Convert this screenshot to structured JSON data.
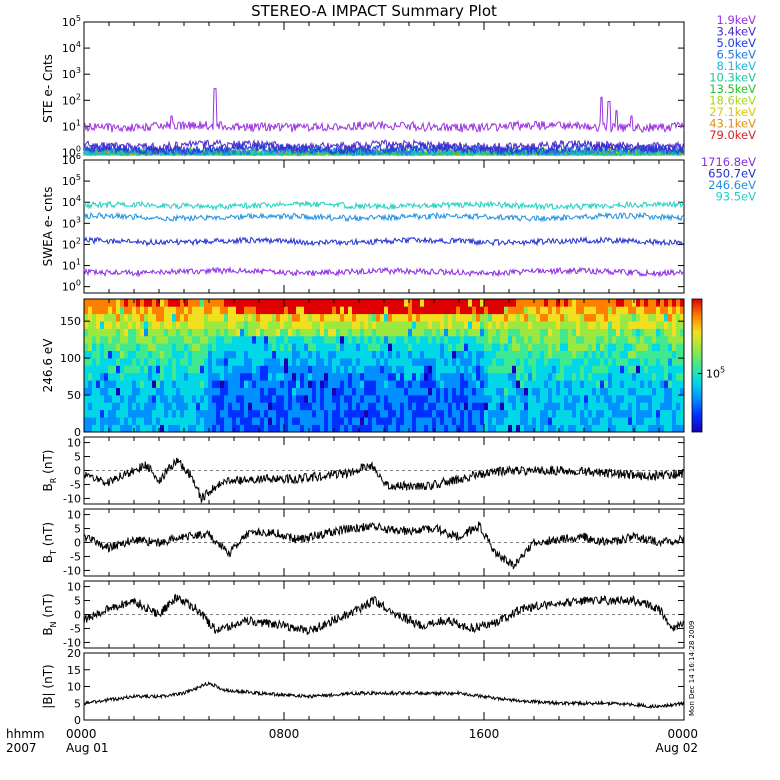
{
  "figure": {
    "title": "STEREO-A IMPACT Summary Plot",
    "footer_left": [
      "hhmm",
      "2007"
    ],
    "side_stamp": "Mon Dec 14 16:14:28 2009"
  },
  "chart_data": [
    {
      "id": "ste",
      "type": "line",
      "ylabel": "STE e- Cnts",
      "yscale": "log",
      "ylim": [
        0.8,
        100000
      ],
      "yticks": [
        "10^0",
        "10^1",
        "10^2",
        "10^3",
        "10^4",
        "10^5"
      ],
      "legend": "right",
      "series": [
        {
          "name": "1.9keV",
          "color": "#9b30e0",
          "baseline": 10,
          "spikes": [
            [
              3.5,
              25
            ],
            [
              5.25,
              280
            ],
            [
              20.7,
              130
            ],
            [
              21.0,
              90
            ],
            [
              21.3,
              40
            ],
            [
              21.9,
              25
            ]
          ]
        },
        {
          "name": "3.4keV",
          "color": "#4b28c8",
          "baseline": 1.8
        },
        {
          "name": "5.0keV",
          "color": "#1f3bdc",
          "baseline": 1.4
        },
        {
          "name": "6.5keV",
          "color": "#1e78e6",
          "baseline": 1.2
        },
        {
          "name": "8.1keV",
          "color": "#19b8d8",
          "baseline": 1.0
        },
        {
          "name": "10.3keV",
          "color": "#16c8a0",
          "baseline": 0.9
        },
        {
          "name": "13.5keV",
          "color": "#22c22a",
          "baseline": 0.9
        },
        {
          "name": "18.6keV",
          "color": "#a6d41e",
          "baseline": 0.9
        },
        {
          "name": "27.1keV",
          "color": "#d8c80e",
          "baseline": 0.9
        },
        {
          "name": "43.1keV",
          "color": "#e08e10",
          "baseline": 0.9
        },
        {
          "name": "79.0keV",
          "color": "#d42222",
          "baseline": 0.9
        }
      ]
    },
    {
      "id": "swea",
      "type": "line",
      "ylabel": "SWEA e- cnts",
      "yscale": "log",
      "ylim": [
        0.5,
        1000000
      ],
      "yticks": [
        "10^0",
        "10^1",
        "10^2",
        "10^3",
        "10^4",
        "10^5",
        "10^6"
      ],
      "legend": "right",
      "series": [
        {
          "name": "1716.8eV",
          "color": "#8a2be2",
          "baseline": 5
        },
        {
          "name": "650.7eV",
          "color": "#1f2fd0",
          "baseline": 140
        },
        {
          "name": "246.6eV",
          "color": "#1e90e0",
          "baseline": 2000
        },
        {
          "name": "93.5eV",
          "color": "#1fd0c0",
          "baseline": 7000
        }
      ]
    },
    {
      "id": "pad",
      "type": "heatmap",
      "ylabel": "246.6 eV",
      "ylim": [
        0,
        180
      ],
      "yticks": [
        0,
        50,
        100,
        150
      ],
      "colorbar_label": "10^5",
      "colorbar_colors": [
        "#1800b8",
        "#0030ff",
        "#0090ff",
        "#00d8e8",
        "#40e890",
        "#9ae840",
        "#f0e020",
        "#ff8000",
        "#e00000"
      ]
    },
    {
      "id": "br",
      "type": "line",
      "ylabel": [
        "B",
        "R",
        " (nT)"
      ],
      "ylim": [
        -12,
        12
      ],
      "yticks": [
        -10,
        -5,
        0,
        5,
        10
      ],
      "series": [
        {
          "color": "#000000",
          "nodes": [
            [
              0,
              -2
            ],
            [
              1,
              -4
            ],
            [
              2,
              0
            ],
            [
              2.5,
              2
            ],
            [
              3,
              -4
            ],
            [
              3.7,
              4
            ],
            [
              4.3,
              -2
            ],
            [
              4.7,
              -10
            ],
            [
              5.5,
              -4
            ],
            [
              7,
              -3
            ],
            [
              8.5,
              -3
            ],
            [
              10.5,
              -1
            ],
            [
              11.5,
              2
            ],
            [
              12,
              -5
            ],
            [
              13.5,
              -6
            ],
            [
              15,
              -3
            ],
            [
              16,
              -1
            ],
            [
              17,
              0
            ],
            [
              18,
              0
            ],
            [
              19.5,
              0
            ],
            [
              21,
              -1
            ],
            [
              22.5,
              -2
            ],
            [
              24,
              -1
            ]
          ]
        }
      ]
    },
    {
      "id": "bt",
      "type": "line",
      "ylabel": [
        "B",
        "T",
        " (nT)"
      ],
      "ylim": [
        -12,
        12
      ],
      "yticks": [
        -10,
        -5,
        0,
        5,
        10
      ],
      "series": [
        {
          "color": "#000000",
          "nodes": [
            [
              0,
              2
            ],
            [
              1,
              -2
            ],
            [
              2,
              1
            ],
            [
              3,
              0
            ],
            [
              4,
              2
            ],
            [
              5,
              3
            ],
            [
              5.8,
              -4
            ],
            [
              6.5,
              3
            ],
            [
              7.5,
              4
            ],
            [
              8.5,
              1
            ],
            [
              10,
              4
            ],
            [
              11.5,
              6
            ],
            [
              12.5,
              4
            ],
            [
              14,
              5
            ],
            [
              15,
              2
            ],
            [
              15.8,
              6
            ],
            [
              16.5,
              -4
            ],
            [
              17.2,
              -8
            ],
            [
              18,
              0
            ],
            [
              19,
              1
            ],
            [
              20,
              2
            ],
            [
              21,
              0
            ],
            [
              22,
              2
            ],
            [
              23,
              0
            ],
            [
              24,
              1
            ]
          ]
        }
      ]
    },
    {
      "id": "bn",
      "type": "line",
      "ylabel": [
        "B",
        "N",
        " (nT)"
      ],
      "ylim": [
        -12,
        12
      ],
      "yticks": [
        -10,
        -5,
        0,
        5,
        10
      ],
      "series": [
        {
          "color": "#000000",
          "nodes": [
            [
              0,
              -2
            ],
            [
              1,
              2
            ],
            [
              2,
              5
            ],
            [
              3,
              0
            ],
            [
              3.7,
              6
            ],
            [
              4.5,
              2
            ],
            [
              5.3,
              -6
            ],
            [
              6.5,
              -2
            ],
            [
              8,
              -4
            ],
            [
              9,
              -6
            ],
            [
              10,
              -2
            ],
            [
              11,
              2
            ],
            [
              11.6,
              5
            ],
            [
              12.5,
              0
            ],
            [
              13.5,
              -4
            ],
            [
              14.5,
              -2
            ],
            [
              15.5,
              -5
            ],
            [
              16.5,
              -3
            ],
            [
              17.5,
              2
            ],
            [
              19,
              4
            ],
            [
              20.5,
              5
            ],
            [
              22,
              5
            ],
            [
              23,
              2
            ],
            [
              23.5,
              -5
            ],
            [
              24,
              -3
            ]
          ]
        }
      ]
    },
    {
      "id": "bmag",
      "type": "line",
      "ylabel": "|B| (nT)",
      "ylim": [
        0,
        20
      ],
      "yticks": [
        0,
        5,
        10,
        15,
        20
      ],
      "series": [
        {
          "color": "#000000",
          "nodes": [
            [
              0,
              5
            ],
            [
              2,
              7
            ],
            [
              3,
              7
            ],
            [
              4,
              8
            ],
            [
              5,
              11
            ],
            [
              5.6,
              9
            ],
            [
              7,
              8
            ],
            [
              9,
              7
            ],
            [
              11,
              8
            ],
            [
              13,
              8
            ],
            [
              15,
              8
            ],
            [
              16,
              7
            ],
            [
              17,
              6
            ],
            [
              19,
              5
            ],
            [
              21,
              5
            ],
            [
              23,
              4
            ],
            [
              24,
              5
            ]
          ]
        }
      ]
    }
  ],
  "x_axis": {
    "range_hours": [
      0,
      24
    ],
    "ticks": [
      {
        "hour": 0,
        "label": "0000",
        "sub": "Aug 01"
      },
      {
        "hour": 8,
        "label": "0800",
        "sub": ""
      },
      {
        "hour": 16,
        "label": "1600",
        "sub": ""
      },
      {
        "hour": 24,
        "label": "0000",
        "sub": "Aug 02"
      }
    ]
  }
}
